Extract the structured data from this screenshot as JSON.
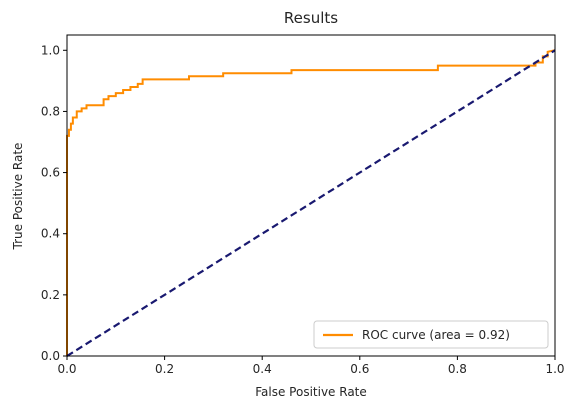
{
  "chart_data": {
    "type": "line",
    "title": "Results",
    "xlabel": "False Positive Rate",
    "ylabel": "True Positive Rate",
    "xlim": [
      0.0,
      1.0
    ],
    "ylim": [
      0.0,
      1.05
    ],
    "xticks": [
      0.0,
      0.2,
      0.4,
      0.6,
      0.8,
      1.0
    ],
    "xtick_labels": [
      "0.0",
      "0.2",
      "0.4",
      "0.6",
      "0.8",
      "1.0"
    ],
    "yticks": [
      0.0,
      0.2,
      0.4,
      0.6,
      0.8,
      1.0
    ],
    "ytick_labels": [
      "0.0",
      "0.2",
      "0.4",
      "0.6",
      "0.8",
      "1.0"
    ],
    "grid": false,
    "legend_position": "lower-right",
    "series": [
      {
        "name": "ROC curve (area = 0.92)",
        "color": "#ff8c00",
        "style": "solid",
        "x": [
          0.0,
          0.0,
          0.004,
          0.004,
          0.008,
          0.008,
          0.012,
          0.012,
          0.02,
          0.02,
          0.03,
          0.03,
          0.04,
          0.04,
          0.06,
          0.06,
          0.075,
          0.075,
          0.085,
          0.085,
          0.1,
          0.1,
          0.115,
          0.115,
          0.13,
          0.13,
          0.145,
          0.145,
          0.155,
          0.155,
          0.2,
          0.2,
          0.25,
          0.25,
          0.32,
          0.32,
          0.46,
          0.46,
          0.72,
          0.72,
          0.76,
          0.76,
          0.91,
          0.91,
          0.96,
          0.96,
          0.975,
          0.975,
          0.985,
          0.985,
          1.0
        ],
        "y": [
          0.0,
          0.72,
          0.72,
          0.74,
          0.74,
          0.76,
          0.76,
          0.78,
          0.78,
          0.8,
          0.8,
          0.81,
          0.81,
          0.82,
          0.82,
          0.82,
          0.82,
          0.84,
          0.84,
          0.85,
          0.85,
          0.86,
          0.86,
          0.87,
          0.87,
          0.88,
          0.88,
          0.89,
          0.89,
          0.905,
          0.905,
          0.905,
          0.905,
          0.915,
          0.915,
          0.925,
          0.925,
          0.935,
          0.935,
          0.935,
          0.935,
          0.95,
          0.95,
          0.95,
          0.95,
          0.96,
          0.96,
          0.98,
          0.98,
          0.995,
          1.0
        ]
      },
      {
        "name": "",
        "color": "#191970",
        "style": "dashed",
        "x": [
          0.0,
          1.0
        ],
        "y": [
          0.0,
          1.0
        ]
      }
    ],
    "legend": [
      {
        "label": "ROC curve (area = 0.92)",
        "color": "#ff8c00"
      }
    ]
  }
}
